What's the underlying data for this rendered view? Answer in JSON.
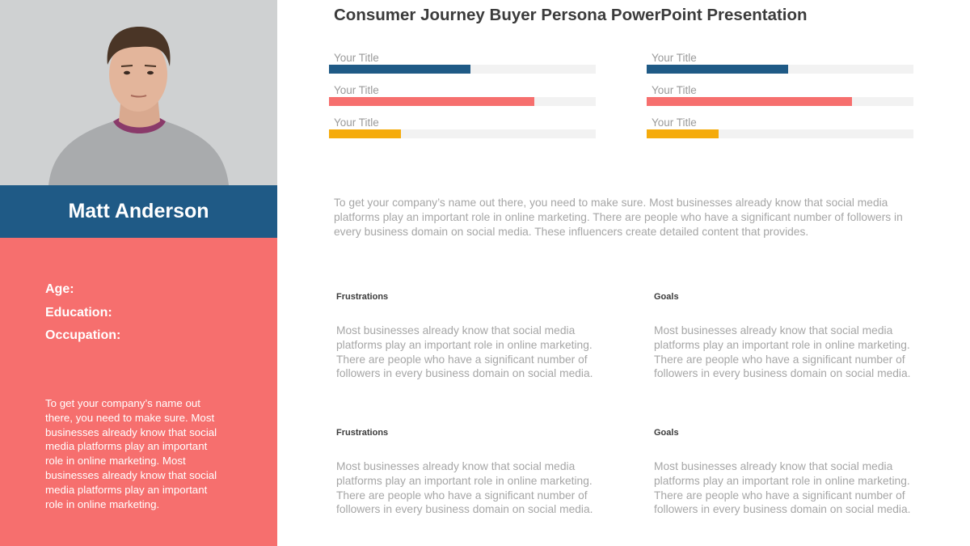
{
  "persona": {
    "name": "Matt Anderson",
    "fields": [
      "Age:",
      "Education:",
      "Occupation:"
    ],
    "description": "To get your company’s name out there, you need to make sure. Most businesses already know that social media platforms play an important role in online marketing. Most businesses already know that social media platforms play an important role in online marketing."
  },
  "header": {
    "title": "Consumer Journey Buyer Persona PowerPoint Presentation"
  },
  "progress_columns": [
    {
      "bars": [
        {
          "label": "Your Title",
          "value": 0.53,
          "color": "#1f5a86"
        },
        {
          "label": "Your Title",
          "value": 0.77,
          "color": "#f66f6e"
        },
        {
          "label": "Your Title",
          "value": 0.27,
          "color": "#f5ab0c"
        }
      ]
    },
    {
      "bars": [
        {
          "label": "Your Title",
          "value": 0.53,
          "color": "#1f5a86"
        },
        {
          "label": "Your Title",
          "value": 0.77,
          "color": "#f66f6e"
        },
        {
          "label": "Your Title",
          "value": 0.27,
          "color": "#f5ab0c"
        }
      ]
    }
  ],
  "intro": "To get your company’s name out there, you need to make sure. Most businesses already know that social media platforms play an important role in online marketing. There are people who have a significant number of followers in every business domain on social media. These influencers create detailed content that provides.",
  "blocks": [
    {
      "title": "Frustrations",
      "text": "Most businesses already know that social media platforms play an important role in online marketing. There are people who have a significant number of followers in every business domain on social media."
    },
    {
      "title": "Goals",
      "text": "Most businesses already know that social media platforms play an important role in online marketing. There are people who have a significant number of followers in every business domain on social media."
    },
    {
      "title": "Frustrations",
      "text": "Most businesses already know that social media platforms play an important role in online marketing. There are people who have a significant number of followers in every business domain on social media."
    },
    {
      "title": "Goals",
      "text": "Most businesses already know that social media platforms play an important role in online marketing. There are people who have a significant number of followers in every business domain on social media."
    }
  ],
  "colors": {
    "navy": "#1f5a86",
    "coral": "#f66f6e",
    "amber": "#f5ab0c"
  }
}
